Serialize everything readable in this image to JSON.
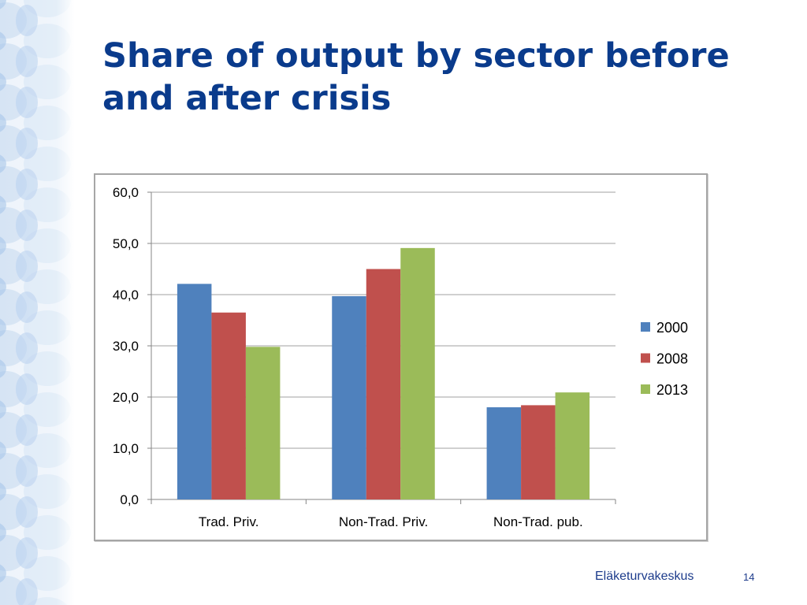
{
  "title": "Share of output by sector before and after crisis",
  "footer": {
    "organization": "Eläketurvakeskus",
    "page_number": "14"
  },
  "colors": {
    "title": "#0a3b8c",
    "series_2000": "#4f81bd",
    "series_2008": "#c0504d",
    "series_2013": "#9bbb59"
  },
  "chart_data": {
    "type": "bar",
    "title": "",
    "xlabel": "",
    "ylabel": "",
    "ylim": [
      0,
      60
    ],
    "yticks": [
      "0,0",
      "10,0",
      "20,0",
      "30,0",
      "40,0",
      "50,0",
      "60,0"
    ],
    "ytick_values": [
      0,
      10,
      20,
      30,
      40,
      50,
      60
    ],
    "categories": [
      "Trad. Priv.",
      "Non-Trad. Priv.",
      "Non-Trad. pub."
    ],
    "series": [
      {
        "name": "2000",
        "color": "#4f81bd",
        "values": [
          42.1,
          39.7,
          18.0
        ]
      },
      {
        "name": "2008",
        "color": "#c0504d",
        "values": [
          36.5,
          45.0,
          18.4
        ]
      },
      {
        "name": "2013",
        "color": "#9bbb59",
        "values": [
          29.8,
          49.1,
          20.9
        ]
      }
    ],
    "grid": true,
    "legend": "right"
  }
}
